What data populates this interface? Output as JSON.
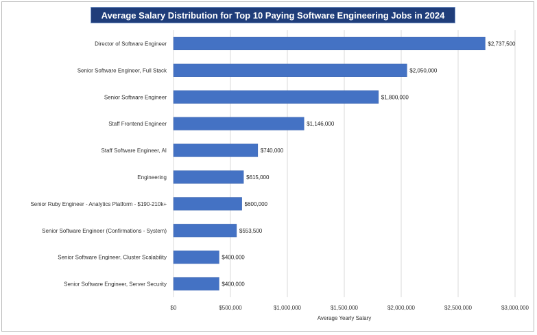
{
  "chart_data": {
    "type": "bar",
    "orientation": "horizontal",
    "title": "Average Salary Distribution for Top 10 Paying Software Engineering Jobs in 2024",
    "xlabel": "Average Yearly Salary",
    "ylabel": "",
    "xlim": [
      0,
      3000000
    ],
    "x_ticks": [
      0,
      500000,
      1000000,
      1500000,
      2000000,
      2500000,
      3000000
    ],
    "x_tick_labels": [
      "$0",
      "$500,000",
      "$1,000,000",
      "$1,500,000",
      "$2,000,000",
      "$2,500,000",
      "$3,000,000"
    ],
    "grid": "vertical",
    "legend": "none",
    "bar_color": "#4472c4",
    "title_background": "#1f3d7a",
    "categories": [
      "Director of Software Engineer",
      "Senior Software Engineer, Full Stack",
      "Senior Software Engineer",
      "Staff Frontend Engineer",
      "Staff Software Engineer, AI",
      "Engineering",
      "Senior Ruby Engineer - Analytics Platform - $190-210k+",
      "Senior Software Engineer (Confirmations - System)",
      "Senior Software Engineer, Cluster Scalability",
      "Senior Software Engineer, Server Security"
    ],
    "values": [
      2737500,
      2050000,
      1800000,
      1146000,
      740000,
      615000,
      600000,
      553500,
      400000,
      400000
    ],
    "data_labels": [
      "$2,737,500",
      "$2,050,000",
      "$1,800,000",
      "$1,146,000",
      "$740,000",
      "$615,000",
      "$600,000",
      "$553,500",
      "$400,000",
      "$400,000"
    ]
  }
}
